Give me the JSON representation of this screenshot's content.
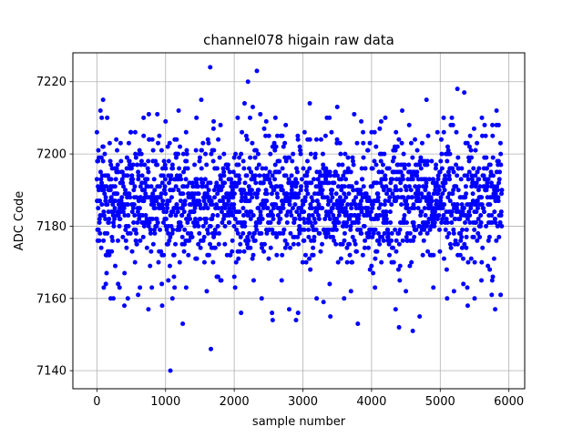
{
  "chart_data": {
    "type": "scatter",
    "title": "channel078 higain raw data",
    "xlabel": "sample number",
    "ylabel": "ADC Code",
    "xlim": [
      -350,
      6230
    ],
    "ylim": [
      7135,
      7228
    ],
    "xticks": [
      0,
      1000,
      2000,
      3000,
      4000,
      5000,
      6000
    ],
    "yticks": [
      7140,
      7160,
      7180,
      7200,
      7220
    ],
    "grid": true,
    "legend": "none",
    "marker_color": "#0000ff",
    "series": [
      {
        "sample_count": 5900,
        "value_range_dense": [
          7170,
          7203
        ],
        "center": 7187,
        "points": [
          {
            "x": 0,
            "y": 7206
          },
          {
            "x": 15,
            "y": 7198
          },
          {
            "x": 30,
            "y": 7187
          },
          {
            "x": 70,
            "y": 7210
          },
          {
            "x": 90,
            "y": 7215
          },
          {
            "x": 100,
            "y": 7163
          },
          {
            "x": 130,
            "y": 7164
          },
          {
            "x": 150,
            "y": 7210
          },
          {
            "x": 180,
            "y": 7172
          },
          {
            "x": 200,
            "y": 7160
          },
          {
            "x": 240,
            "y": 7160
          },
          {
            "x": 330,
            "y": 7163
          },
          {
            "x": 400,
            "y": 7158
          },
          {
            "x": 450,
            "y": 7160
          },
          {
            "x": 600,
            "y": 7161
          },
          {
            "x": 680,
            "y": 7210
          },
          {
            "x": 750,
            "y": 7157
          },
          {
            "x": 800,
            "y": 7163
          },
          {
            "x": 880,
            "y": 7211
          },
          {
            "x": 950,
            "y": 7158
          },
          {
            "x": 1000,
            "y": 7209
          },
          {
            "x": 1040,
            "y": 7165
          },
          {
            "x": 1070,
            "y": 7140
          },
          {
            "x": 1100,
            "y": 7160
          },
          {
            "x": 1160,
            "y": 7204
          },
          {
            "x": 1190,
            "y": 7212
          },
          {
            "x": 1250,
            "y": 7153
          },
          {
            "x": 1300,
            "y": 7163
          },
          {
            "x": 1450,
            "y": 7210
          },
          {
            "x": 1520,
            "y": 7215
          },
          {
            "x": 1600,
            "y": 7162
          },
          {
            "x": 1650,
            "y": 7224
          },
          {
            "x": 1660,
            "y": 7146
          },
          {
            "x": 1700,
            "y": 7209
          },
          {
            "x": 1800,
            "y": 7165
          },
          {
            "x": 1850,
            "y": 7200
          },
          {
            "x": 2000,
            "y": 7199
          },
          {
            "x": 2050,
            "y": 7210
          },
          {
            "x": 2100,
            "y": 7156
          },
          {
            "x": 2150,
            "y": 7214
          },
          {
            "x": 2200,
            "y": 7220
          },
          {
            "x": 2230,
            "y": 7210
          },
          {
            "x": 2270,
            "y": 7213
          },
          {
            "x": 2330,
            "y": 7223
          },
          {
            "x": 2380,
            "y": 7211
          },
          {
            "x": 2400,
            "y": 7160
          },
          {
            "x": 2550,
            "y": 7156
          },
          {
            "x": 2560,
            "y": 7154
          },
          {
            "x": 2600,
            "y": 7210
          },
          {
            "x": 2750,
            "y": 7208
          },
          {
            "x": 2800,
            "y": 7157
          },
          {
            "x": 2900,
            "y": 7154
          },
          {
            "x": 2930,
            "y": 7156
          },
          {
            "x": 3100,
            "y": 7214
          },
          {
            "x": 3200,
            "y": 7160
          },
          {
            "x": 3300,
            "y": 7159
          },
          {
            "x": 3350,
            "y": 7210
          },
          {
            "x": 3400,
            "y": 7155
          },
          {
            "x": 3500,
            "y": 7213
          },
          {
            "x": 3600,
            "y": 7160
          },
          {
            "x": 3700,
            "y": 7162
          },
          {
            "x": 3800,
            "y": 7153
          },
          {
            "x": 3850,
            "y": 7209
          },
          {
            "x": 4000,
            "y": 7206
          },
          {
            "x": 4050,
            "y": 7163
          },
          {
            "x": 4200,
            "y": 7210
          },
          {
            "x": 4350,
            "y": 7157
          },
          {
            "x": 4400,
            "y": 7152
          },
          {
            "x": 4500,
            "y": 7162
          },
          {
            "x": 4600,
            "y": 7151
          },
          {
            "x": 4700,
            "y": 7155
          },
          {
            "x": 4800,
            "y": 7215
          },
          {
            "x": 4900,
            "y": 7163
          },
          {
            "x": 5050,
            "y": 7210
          },
          {
            "x": 5100,
            "y": 7160
          },
          {
            "x": 5200,
            "y": 7162
          },
          {
            "x": 5250,
            "y": 7218
          },
          {
            "x": 5350,
            "y": 7217
          },
          {
            "x": 5400,
            "y": 7158
          },
          {
            "x": 5500,
            "y": 7160
          },
          {
            "x": 5600,
            "y": 7165
          },
          {
            "x": 5750,
            "y": 7161
          },
          {
            "x": 5800,
            "y": 7157
          },
          {
            "x": 5820,
            "y": 7212
          },
          {
            "x": 5850,
            "y": 7208
          },
          {
            "x": 5880,
            "y": 7161
          }
        ]
      }
    ]
  }
}
